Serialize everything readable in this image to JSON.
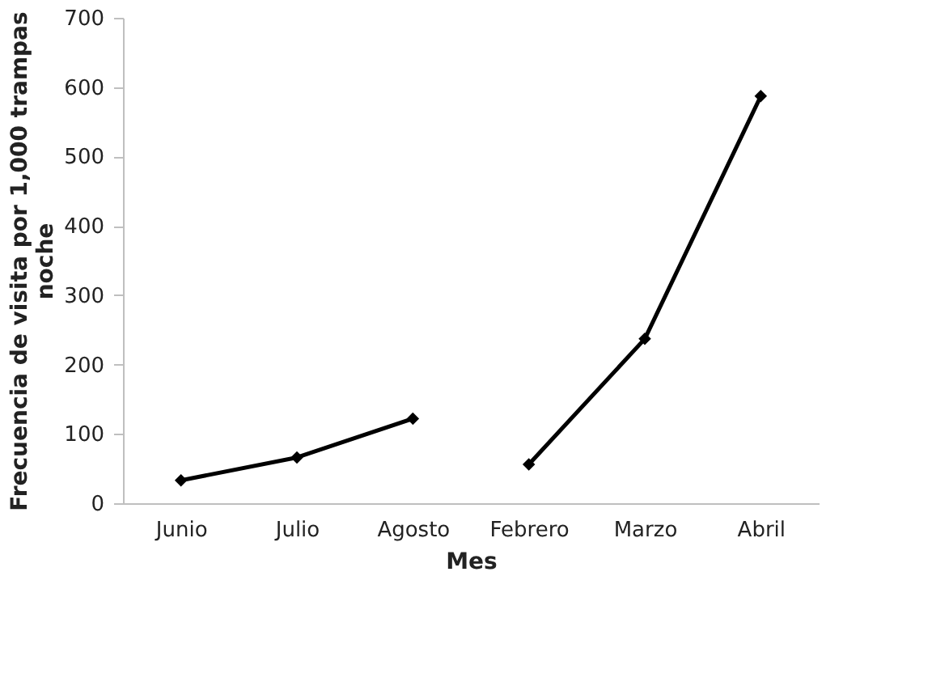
{
  "chart_data": {
    "type": "line",
    "xlabel": "Mes",
    "ylabel": "Frecuencia de visita por 1,000 trampas noche",
    "categories": [
      "Junio",
      "Julio",
      "Agosto",
      "Febrero",
      "Marzo",
      "Abril"
    ],
    "series": [
      {
        "color": "#000000",
        "values": [
          33,
          66,
          122,
          null,
          null,
          null
        ]
      },
      {
        "color": "#000000",
        "values": [
          null,
          null,
          null,
          56,
          237,
          587
        ]
      }
    ],
    "ylim": [
      0,
      700
    ],
    "yticks": [
      0,
      100,
      200,
      300,
      400,
      500,
      600,
      700
    ],
    "grid": false,
    "legend": false,
    "marker": "diamond",
    "line_style": "solid"
  }
}
